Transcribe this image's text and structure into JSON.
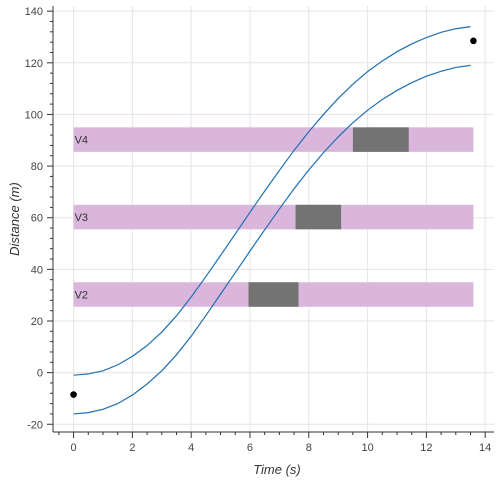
{
  "chart_data": {
    "type": "line",
    "xlabel": "Time (s)",
    "ylabel": "Distance (m)",
    "xlim": [
      -0.7,
      14.3
    ],
    "ylim": [
      -23,
      142
    ],
    "x_ticks": [
      0,
      2,
      4,
      6,
      8,
      10,
      12,
      14
    ],
    "y_ticks": [
      -20,
      0,
      20,
      40,
      60,
      80,
      100,
      120,
      140
    ],
    "grid": true,
    "curve_color": "#1f6fb4",
    "series": [
      {
        "x": [
          0,
          0.5,
          1,
          1.5,
          2,
          2.5,
          3,
          3.5,
          4,
          4.5,
          5,
          5.5,
          6,
          6.5,
          7,
          7.5,
          8,
          8.5,
          9,
          9.5,
          10,
          10.5,
          11,
          11.5,
          12,
          12.5,
          13,
          13.5
        ],
        "values": [
          -1,
          -0.5,
          0.7,
          3,
          6.3,
          10.5,
          15.7,
          22,
          29.3,
          37.2,
          45.4,
          53.7,
          62.1,
          70.3,
          78.3,
          86.1,
          93.3,
          100,
          106.2,
          111.7,
          116.6,
          120.7,
          124.3,
          127.3,
          129.8,
          131.8,
          133.2,
          134
        ]
      },
      {
        "x": [
          0,
          0.5,
          1,
          1.5,
          2,
          2.5,
          3,
          3.5,
          4,
          4.5,
          5,
          5.5,
          6,
          6.5,
          7,
          7.5,
          8,
          8.5,
          9,
          9.5,
          10,
          10.5,
          11,
          11.5,
          12,
          12.5,
          13,
          13.5
        ],
        "values": [
          -16,
          -15.5,
          -14.2,
          -12,
          -8.7,
          -4.4,
          0.7,
          6.9,
          14.1,
          22.1,
          30.4,
          38.7,
          47.1,
          55.3,
          63.4,
          71.2,
          78.5,
          85.2,
          91.3,
          96.8,
          101.6,
          105.8,
          109.3,
          112.3,
          114.8,
          116.7,
          118.2,
          119
        ]
      }
    ],
    "points": [
      {
        "x": 0,
        "y": -8.5
      },
      {
        "x": 13.6,
        "y": 128.5
      }
    ],
    "bands": [
      {
        "label": "V2",
        "x": [
          0,
          13.6
        ],
        "y": [
          25.5,
          35
        ],
        "color": "#dab6dc",
        "block": {
          "x": [
            5.95,
            7.65
          ],
          "color": "#737373"
        }
      },
      {
        "label": "V3",
        "x": [
          0,
          13.6
        ],
        "y": [
          55.5,
          65
        ],
        "color": "#dab6dc",
        "block": {
          "x": [
            7.55,
            9.1
          ],
          "color": "#737373"
        }
      },
      {
        "label": "V4",
        "x": [
          0,
          13.6
        ],
        "y": [
          85.5,
          95
        ],
        "color": "#dab6dc",
        "block": {
          "x": [
            9.5,
            11.4
          ],
          "color": "#737373"
        }
      }
    ]
  }
}
